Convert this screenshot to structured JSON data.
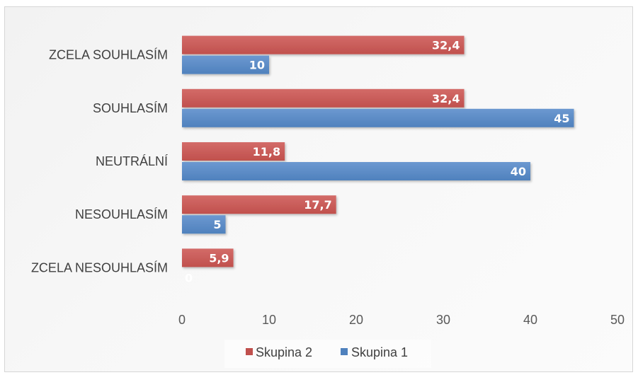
{
  "chart_data": {
    "type": "bar",
    "orientation": "horizontal",
    "categories": [
      "ZCELA SOUHLASÍM",
      "SOUHLASÍM",
      "NEUTRÁLNÍ",
      "NESOUHLASÍM",
      "ZCELA NESOUHLASÍM"
    ],
    "series": [
      {
        "name": "Skupina 2",
        "values": [
          32.4,
          32.4,
          11.8,
          17.7,
          5.9
        ],
        "labels": [
          "32,4",
          "32,4",
          "11,8",
          "17,7",
          "5,9"
        ],
        "color": "#c0504d"
      },
      {
        "name": "Skupina 1",
        "values": [
          10,
          45,
          40,
          5,
          0
        ],
        "labels": [
          "10",
          "45",
          "40",
          "5",
          "0"
        ],
        "color": "#4f81bd"
      }
    ],
    "xticks": [
      "0",
      "10",
      "20",
      "30",
      "40",
      "50"
    ],
    "xlim": [
      0,
      50
    ],
    "grid": true,
    "legend_position": "bottom",
    "legend_order": [
      "Skupina 2",
      "Skupina 1"
    ]
  }
}
